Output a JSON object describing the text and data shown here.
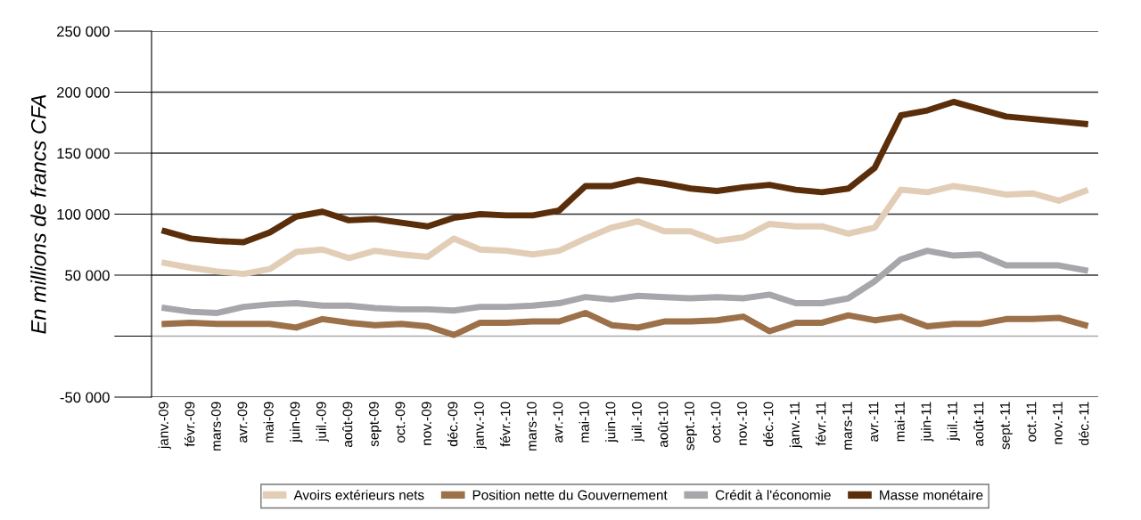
{
  "chart_data": {
    "type": "line",
    "ylabel": "En millions de francs CFA",
    "categories": [
      "janv.-09",
      "févr.-09",
      "mars-09",
      "avr.-09",
      "mai-09",
      "juin-09",
      "juil.-09",
      "août-09",
      "sept-09",
      "oct.-09",
      "nov.-09",
      "déc.-09",
      "janv.-10",
      "févr.-10",
      "mars-10",
      "avr.-10",
      "mai-10",
      "juin-10",
      "juil.-10",
      "août-10",
      "sept.-10",
      "oct.-10",
      "nov.-10",
      "déc.-10",
      "janv.-11",
      "févr.-11",
      "mars-11",
      "avr.-11",
      "mai-11",
      "juin-11",
      "juil.-11",
      "août-11",
      "sept.-11",
      "oct.-11",
      "nov.-11",
      "déc.-11"
    ],
    "series": [
      {
        "name": "Avoirs extérieurs nets",
        "color": "#e2cdb7",
        "values": [
          60000,
          56000,
          53000,
          51000,
          55000,
          69000,
          71000,
          64000,
          70000,
          67000,
          65000,
          80000,
          71000,
          70000,
          67000,
          70000,
          80000,
          89000,
          94000,
          86000,
          86000,
          78000,
          81000,
          92000,
          90000,
          90000,
          84000,
          89000,
          120000,
          118000,
          123000,
          120000,
          116000,
          117000,
          111000,
          119000
        ]
      },
      {
        "name": "Position nette du Gouvernement",
        "color": "#9c7048",
        "values": [
          10000,
          11000,
          10000,
          10000,
          10000,
          7000,
          14000,
          11000,
          9000,
          10000,
          8000,
          1000,
          11000,
          11000,
          12000,
          12000,
          19000,
          9000,
          7000,
          12000,
          12000,
          13000,
          16000,
          4000,
          11000,
          11000,
          17000,
          13000,
          16000,
          8000,
          10000,
          10000,
          14000,
          14000,
          15000,
          9000
        ]
      },
      {
        "name": "Crédit à l'économie",
        "color": "#a7a7ab",
        "values": [
          23000,
          20000,
          19000,
          24000,
          26000,
          27000,
          25000,
          25000,
          23000,
          22000,
          22000,
          21000,
          24000,
          24000,
          25000,
          27000,
          32000,
          30000,
          33000,
          32000,
          31000,
          32000,
          31000,
          34000,
          27000,
          27000,
          31000,
          45000,
          63000,
          70000,
          66000,
          67000,
          58000,
          58000,
          58000,
          54000
        ]
      },
      {
        "name": "Masse monétaire",
        "color": "#5a2e0a",
        "values": [
          86000,
          80000,
          78000,
          77000,
          85000,
          98000,
          102000,
          95000,
          96000,
          93000,
          90000,
          97000,
          100000,
          99000,
          99000,
          103000,
          123000,
          123000,
          128000,
          125000,
          121000,
          119000,
          122000,
          124000,
          120000,
          118000,
          121000,
          138000,
          181000,
          185000,
          192000,
          186000,
          180000,
          178000,
          176000,
          174000
        ]
      }
    ],
    "ylim": [
      -50000,
      250000
    ],
    "yticks": [
      {
        "value": -50000,
        "label": "-50 000"
      },
      {
        "value": 0,
        "label": null
      },
      {
        "value": 50000,
        "label": "50 000"
      },
      {
        "value": 100000,
        "label": "100 000"
      },
      {
        "value": 150000,
        "label": "150 000"
      },
      {
        "value": 200000,
        "label": "200 000"
      },
      {
        "value": 250000,
        "label": "250 000"
      }
    ],
    "grid": "y",
    "legend": "bottom",
    "marker": "none",
    "line_style": "solid"
  }
}
